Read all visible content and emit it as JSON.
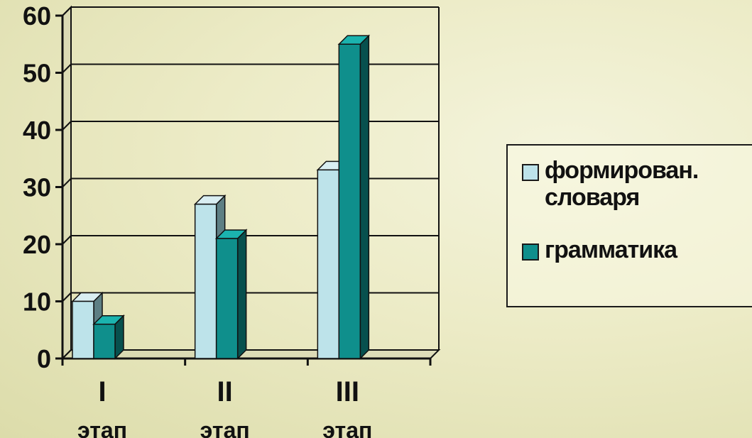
{
  "chart_data": {
    "type": "bar",
    "categories": [
      "I этап",
      "II этап",
      "III этап"
    ],
    "series": [
      {
        "name": "формирован. словаря",
        "values": [
          10,
          27,
          33
        ],
        "color": "#bde3ea"
      },
      {
        "name": "грамматика",
        "values": [
          6,
          21,
          55
        ],
        "color": "#0f8f8c"
      }
    ],
    "yticks": [
      "0",
      "10",
      "20",
      "30",
      "40",
      "50",
      "60"
    ],
    "ylim": [
      0,
      60
    ],
    "grid": true,
    "legend_position": "right"
  },
  "legend": {
    "item1_line1": "формирован.",
    "item1_line2": "словаря",
    "item2": "грамматика"
  }
}
